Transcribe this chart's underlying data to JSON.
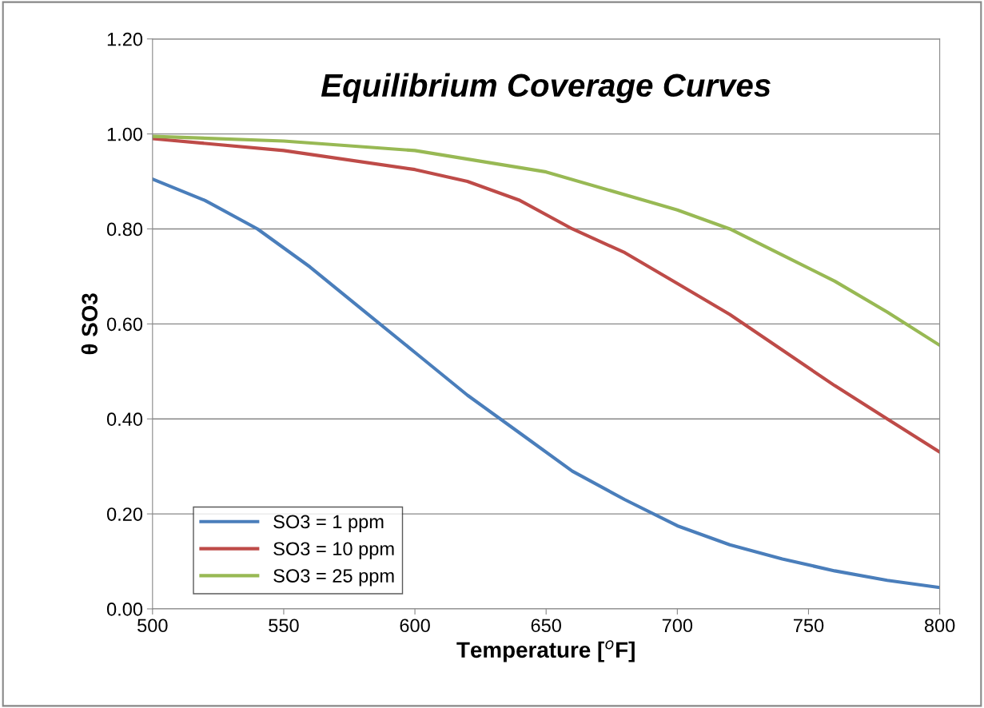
{
  "chart_data": {
    "type": "line",
    "title": "Equilibrium Coverage Curves",
    "xlabel": "Temperature [$^{o}$F]",
    "ylabel": "θ SO3",
    "xlim": [
      500,
      800
    ],
    "xticks": [
      500,
      550,
      600,
      650,
      700,
      750,
      800
    ],
    "ylim": [
      0,
      1.2
    ],
    "yticks": [
      {
        "value": 0,
        "label": "0.00"
      },
      {
        "value": 0.2,
        "label": "0.20"
      },
      {
        "value": 0.4,
        "label": "0.40"
      },
      {
        "value": 0.6,
        "label": "0.60"
      },
      {
        "value": 0.8,
        "label": "0.80"
      },
      {
        "value": 1.0,
        "label": "1.00"
      },
      {
        "value": 1.2,
        "label": "1.20"
      }
    ],
    "grid": "y",
    "legend": "bottom left",
    "marker": "none",
    "line_style": "solid",
    "series": [
      {
        "name": "SO3 = 1 ppm",
        "color": "#4a7ebb",
        "x": [
          500,
          520,
          540,
          560,
          580,
          600,
          620,
          640,
          660,
          680,
          700,
          720,
          740,
          760,
          780,
          800
        ],
        "values": [
          0.905,
          0.86,
          0.8,
          0.72,
          0.63,
          0.54,
          0.45,
          0.37,
          0.29,
          0.23,
          0.175,
          0.135,
          0.105,
          0.08,
          0.06,
          0.045
        ]
      },
      {
        "name": "SO3 = 10 ppm",
        "color": "#be4b48",
        "x": [
          500,
          550,
          600,
          620,
          640,
          660,
          680,
          700,
          720,
          740,
          760,
          780,
          800
        ],
        "values": [
          0.99,
          0.965,
          0.925,
          0.9,
          0.86,
          0.8,
          0.75,
          0.685,
          0.62,
          0.545,
          0.47,
          0.4,
          0.33
        ]
      },
      {
        "name": "SO3 = 25 ppm",
        "color": "#98b954",
        "x": [
          500,
          550,
          600,
          650,
          700,
          720,
          740,
          760,
          780,
          800
        ],
        "values": [
          0.995,
          0.985,
          0.965,
          0.92,
          0.84,
          0.8,
          0.745,
          0.69,
          0.625,
          0.555
        ]
      }
    ]
  }
}
